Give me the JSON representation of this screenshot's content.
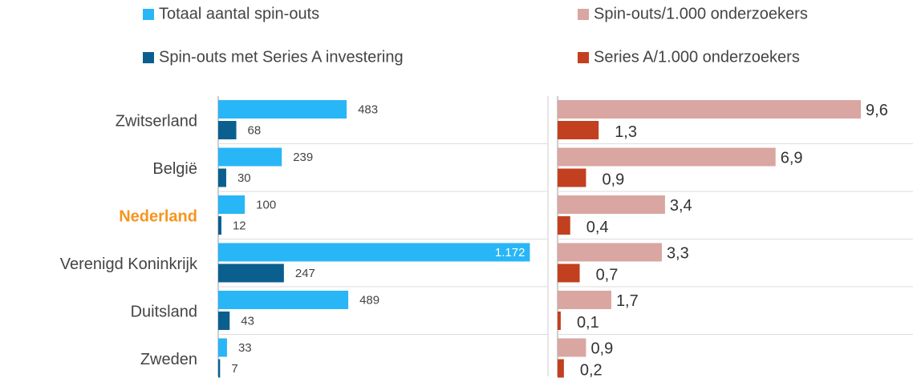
{
  "chart_data": {
    "type": "bar",
    "orientation": "horizontal",
    "categories": [
      "Zwitserland",
      "België",
      "Nederland",
      "Verenigd Koninkrijk",
      "Duitsland",
      "Zweden"
    ],
    "highlight": {
      "category": "Nederland",
      "color": "#f7941d"
    },
    "xlim": [
      0,
      1240
    ],
    "x2lim": [
      0,
      11.25
    ],
    "series": [
      {
        "name": "Totaal aantal spin-outs",
        "color": "#29b6f6",
        "axis": "x",
        "values": [
          483,
          239,
          100,
          1172,
          489,
          33
        ],
        "value_labels": [
          "483",
          "239",
          "100",
          "1.172",
          "489",
          "33"
        ]
      },
      {
        "name": "Spin-outs met Series A investering",
        "color": "#0a5f8f",
        "axis": "x",
        "values": [
          68,
          30,
          12,
          247,
          43,
          7
        ]
      },
      {
        "name": "Spin-outs/1.000 onderzoekers",
        "color": "#d9a6a1",
        "axis": "x2",
        "values": [
          9.6,
          6.9,
          3.4,
          3.3,
          1.7,
          0.9
        ],
        "value_labels": [
          "9,6",
          "6,9",
          "3,4",
          "3,3",
          "1,7",
          "0,9"
        ]
      },
      {
        "name": "Series A/1.000 onderzoekers",
        "color": "#c2401f",
        "axis": "x2",
        "values": [
          1.3,
          0.9,
          0.4,
          0.7,
          0.1,
          0.2
        ],
        "value_labels": [
          "1,3",
          "0,9",
          "0,4",
          "0,7",
          "0,1",
          "0,2"
        ]
      }
    ]
  }
}
